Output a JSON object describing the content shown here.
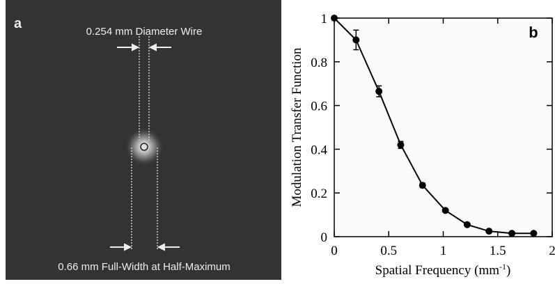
{
  "panel_a": {
    "label": "a",
    "top_annotation": "0.254 mm Diameter Wire",
    "bottom_annotation": "0.66 mm Full-Width at Half-Maximum"
  },
  "chart_data": {
    "type": "line",
    "panel_label": "b",
    "y_label": "Modulation Transfer Function",
    "x_label": {
      "text": "Spatial Frequency (mm",
      "superscript": "-1",
      "close": ")"
    },
    "x": [
      0,
      0.2,
      0.41,
      0.61,
      0.81,
      1.02,
      1.22,
      1.42,
      1.63,
      1.83
    ],
    "values": [
      1,
      0.9,
      0.665,
      0.42,
      0.235,
      0.12,
      0.055,
      0.025,
      0.015,
      0.015
    ],
    "errors": [
      null,
      0.045,
      0.025,
      0.016,
      0.01,
      null,
      null,
      null,
      null,
      null
    ],
    "color": "#000000",
    "xlim": [
      0,
      2
    ],
    "xticks": [
      0,
      0.5,
      1,
      1.5,
      2
    ],
    "ylim": [
      0,
      1
    ],
    "yticks": [
      0,
      0.2,
      0.4,
      0.6,
      0.8,
      1
    ]
  }
}
